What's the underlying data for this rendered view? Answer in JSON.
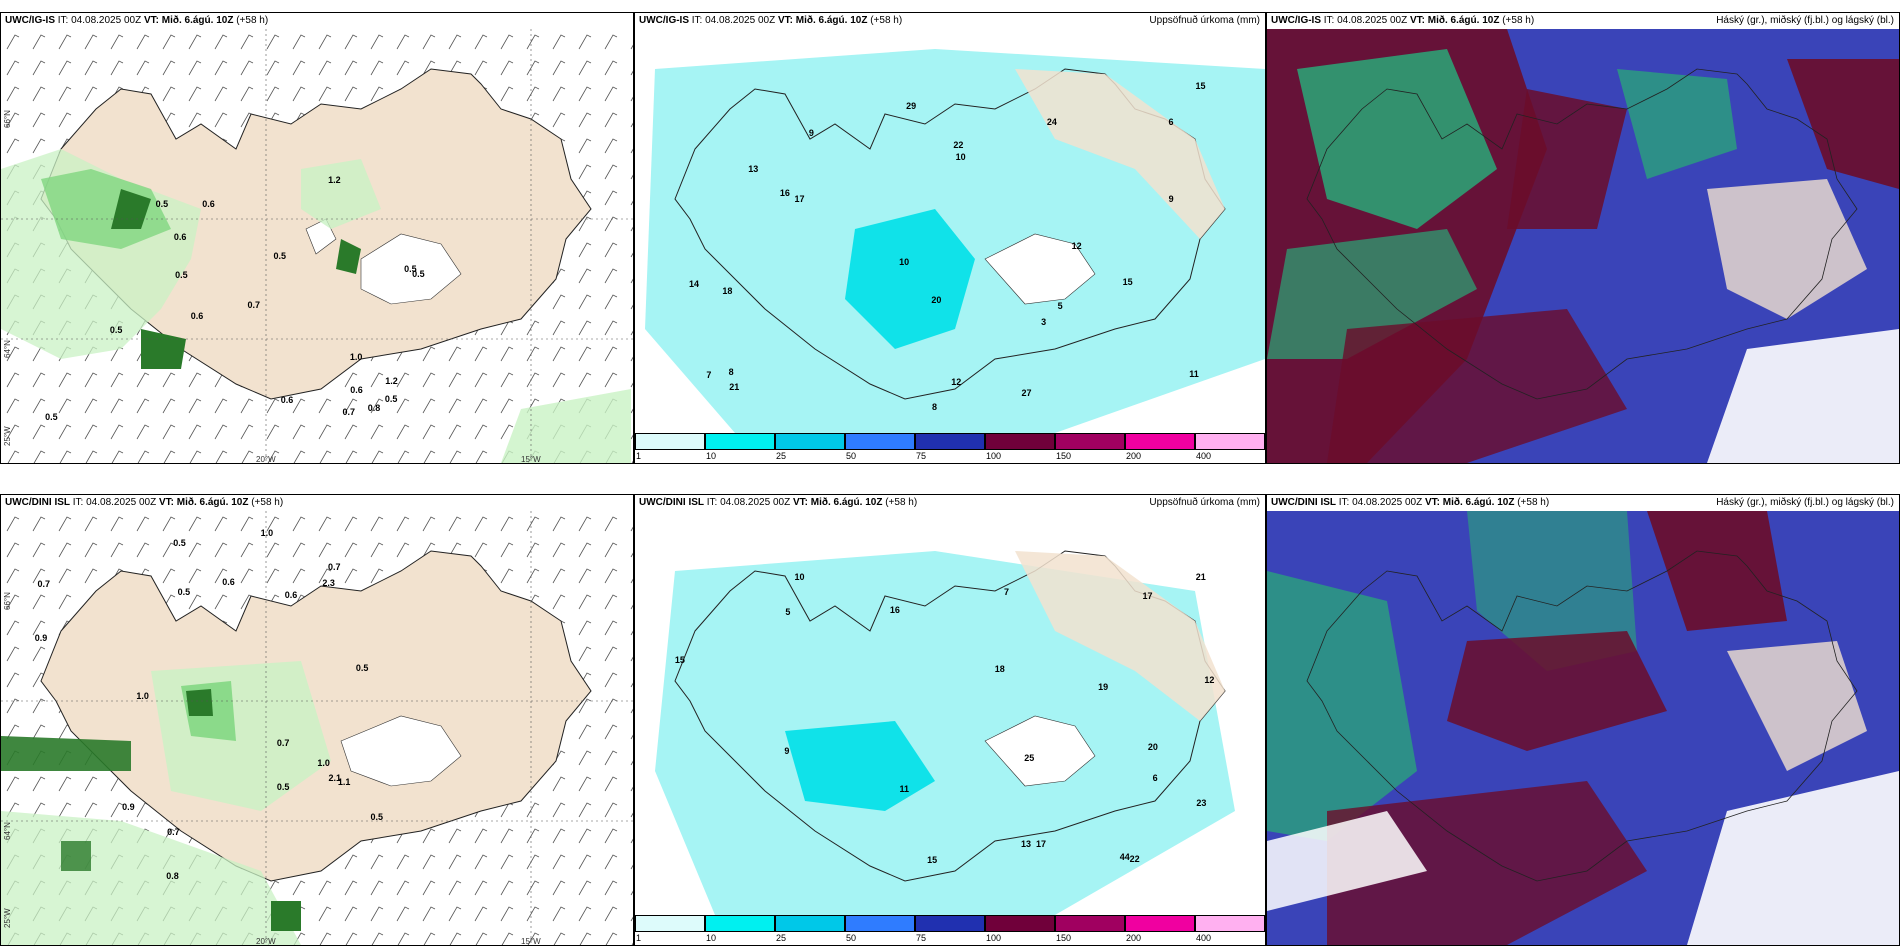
{
  "panels": {
    "p1": {
      "model": "UWC/IG-IS",
      "it_label": "IT:",
      "it": "04.08.2025 00Z",
      "vt_label": "VT:",
      "vt": "Mið. 6.ágú. 10Z",
      "lead": "(+58 h)",
      "right_title": ""
    },
    "p2": {
      "model": "UWC/IG-IS",
      "it_label": "IT:",
      "it": "04.08.2025 00Z",
      "vt_label": "VT:",
      "vt": "Mið. 6.ágú. 10Z",
      "lead": "(+58 h)",
      "right_title": "Uppsöfnuð úrkoma (mm)"
    },
    "p3": {
      "model": "UWC/IG-IS",
      "it_label": "IT:",
      "it": "04.08.2025 00Z",
      "vt_label": "VT:",
      "vt": "Mið. 6.ágú. 10Z",
      "lead": "(+58 h)",
      "right_title": "Háský (gr.), miðský (fj.bl.) og lágský (bl.)"
    },
    "p4": {
      "model": "UWC/DINI ISL",
      "it_label": "IT:",
      "it": "04.08.2025 00Z",
      "vt_label": "VT:",
      "vt": "Mið. 6.ágú. 10Z",
      "lead": "(+58 h)",
      "right_title": ""
    },
    "p5": {
      "model": "UWC/DINI ISL",
      "it_label": "IT:",
      "it": "04.08.2025 00Z",
      "vt_label": "VT:",
      "vt": "Mið. 6.ágú. 10Z",
      "lead": "(+58 h)",
      "right_title": "Uppsöfnuð úrkoma (mm)"
    },
    "p6": {
      "model": "UWC/DINI ISL",
      "it_label": "IT:",
      "it": "04.08.2025 00Z",
      "vt_label": "VT:",
      "vt": "Mið. 6.ágú. 10Z",
      "lead": "(+58 h)",
      "right_title": "Háský (gr.), miðský (fj.bl.) og lágský (bl.)"
    }
  },
  "grid_labels": {
    "lat_66": "66°N",
    "lat_64": "64°N",
    "lon_25": "25°W",
    "lon_20": "20°W",
    "lon_15": "15°W"
  },
  "colorbar": {
    "ticks": [
      "1",
      "10",
      "25",
      "50",
      "75",
      "100",
      "150",
      "200",
      "400"
    ],
    "colors": [
      "#ddfbfb",
      "#00f0f0",
      "#00c8e8",
      "#2f7cff",
      "#2030b0",
      "#70003a",
      "#a00060",
      "#f000a0",
      "#ffb0f0"
    ]
  },
  "colors": {
    "land": "#f2e2cf",
    "glacier": "#ffffff",
    "green_light": "#c9f2c4",
    "green_mid": "#7fd67f",
    "green_dark": "#2a7a2a",
    "cyan": "#a6f4f4",
    "cyan_dark": "#00e0e8",
    "cloud_high": "#6b0d2a",
    "cloud_mid": "#3a44b8",
    "cloud_low": "#2aa878"
  },
  "labels": {
    "p1": [
      "0.5",
      "0.7",
      "0.6",
      "0.5",
      "0.5",
      "0.8",
      "0.5",
      "0.6",
      "0.5",
      "0.5",
      "0.6",
      "0.5",
      "0.6",
      "1.2",
      "0.5",
      "0.7",
      "1.2",
      "1.0",
      "0.6"
    ],
    "p2": [
      "8",
      "6",
      "5",
      "7",
      "3",
      "9",
      "10",
      "8",
      "17",
      "16",
      "12",
      "15",
      "10",
      "9",
      "20",
      "22",
      "27",
      "18",
      "15",
      "14",
      "13",
      "24",
      "12",
      "11",
      "29",
      "21"
    ],
    "p4": [
      "0.7",
      "0.5",
      "0.5",
      "2.1",
      "0.7",
      "0.5",
      "1.0",
      "0.6",
      "0.7",
      "1.0",
      "0.5",
      "0.9",
      "0.6",
      "0.7",
      "1.1",
      "1.0",
      "0.9",
      "0.5",
      "2.3",
      "0.8"
    ],
    "p5": [
      "6",
      "5",
      "9",
      "17",
      "15",
      "12",
      "10",
      "7",
      "11",
      "20",
      "21",
      "22",
      "23",
      "17",
      "18",
      "44",
      "25",
      "15",
      "19",
      "13",
      "16"
    ]
  }
}
